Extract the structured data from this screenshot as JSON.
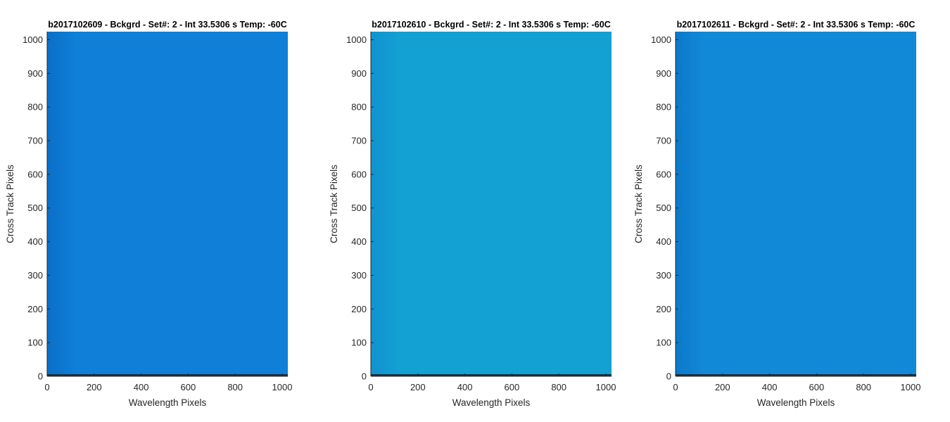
{
  "chart_data": [
    {
      "type": "heatmap",
      "title": "b2017102609 - Bckgrd - Set#: 2 - Int 33.5306 s Temp: -60C",
      "xlabel": "Wavelength Pixels",
      "ylabel": "Cross Track Pixels",
      "xlim": [
        0,
        1024
      ],
      "ylim": [
        0,
        1024
      ],
      "xticks": [
        0,
        200,
        400,
        600,
        800,
        1000
      ],
      "yticks": [
        0,
        100,
        200,
        300,
        400,
        500,
        600,
        700,
        800,
        900,
        1000
      ],
      "colors": {
        "base": "#0f7fd7",
        "edge": "#0a6fc8",
        "bottom_row": "#1f2e3a"
      },
      "description_of_values": "uniform background frame, slightly darker at left edge"
    },
    {
      "type": "heatmap",
      "title": "b2017102610 - Bckgrd - Set#: 2 - Int 33.5306 s Temp: -60C",
      "xlabel": "Wavelength Pixels",
      "ylabel": "Cross Track Pixels",
      "xlim": [
        0,
        1024
      ],
      "ylim": [
        0,
        1024
      ],
      "xticks": [
        0,
        200,
        400,
        600,
        800,
        1000
      ],
      "yticks": [
        0,
        100,
        200,
        300,
        400,
        500,
        600,
        700,
        800,
        900,
        1000
      ],
      "colors": {
        "base": "#13a0d3",
        "edge": "#1193d0",
        "bottom_row": "#1f2e3a"
      },
      "description_of_values": "uniform background frame"
    },
    {
      "type": "heatmap",
      "title": "b2017102611 - Bckgrd - Set#: 2 - Int 33.5306 s Temp: -60C",
      "xlabel": "Wavelength Pixels",
      "ylabel": "Cross Track Pixels",
      "xlim": [
        0,
        1024
      ],
      "ylim": [
        0,
        1024
      ],
      "xticks": [
        0,
        200,
        400,
        600,
        800,
        1000
      ],
      "yticks": [
        0,
        100,
        200,
        300,
        400,
        500,
        600,
        700,
        800,
        900,
        1000
      ],
      "colors": {
        "base": "#1289d6",
        "edge": "#0c79cb",
        "bottom_row": "#1f2e3a"
      },
      "description_of_values": "uniform background frame, slightly darker at left edge"
    }
  ]
}
